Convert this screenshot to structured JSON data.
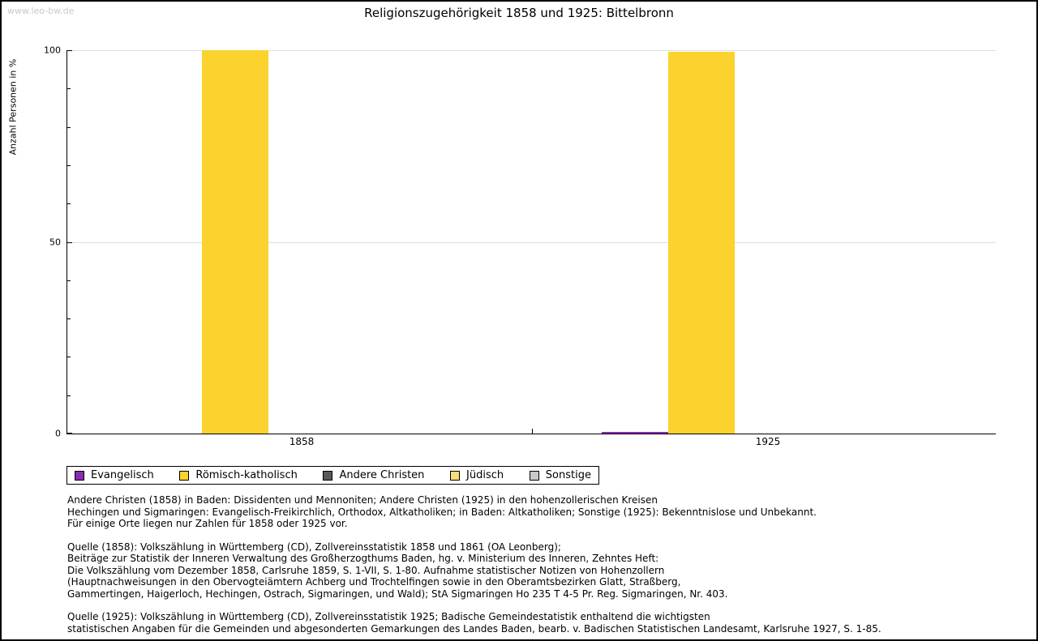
{
  "watermark": "www.leo-bw.de",
  "chart_data": {
    "type": "bar",
    "title": "Religionszugehörigkeit 1858 und 1925: Bittelbronn",
    "xlabel": "",
    "ylabel": "Anzahl Personen in %",
    "ylim": [
      0,
      100
    ],
    "yticks_major": [
      0,
      50,
      100
    ],
    "yticks_minor": [
      10,
      20,
      30,
      40,
      60,
      70,
      80,
      90
    ],
    "gridlines_at": [
      50,
      100
    ],
    "grid": "horizontal major gridlines only",
    "categories": [
      "1858",
      "1925"
    ],
    "series": [
      {
        "name": "Evangelisch",
        "color": "#8B2BB0",
        "values": [
          0,
          0.4
        ]
      },
      {
        "name": "Römisch-katholisch",
        "color": "#FBD22E",
        "values": [
          100,
          99.6
        ]
      },
      {
        "name": "Andere Christen",
        "color": "#595959",
        "values": [
          0,
          0
        ]
      },
      {
        "name": "Jüdisch",
        "color": "#F5DE7D",
        "values": [
          0,
          0
        ]
      },
      {
        "name": "Sonstige",
        "color": "#C9C9C9",
        "values": [
          0,
          0
        ]
      }
    ],
    "legend_position": "bottom-left, boxed, horizontal"
  },
  "footnotes": [
    [
      "Andere Christen (1858) in Baden: Dissidenten und Mennoniten; Andere Christen (1925) in den hohenzollerischen Kreisen",
      "Hechingen und Sigmaringen: Evangelisch-Freikirchlich, Orthodox, Altkatholiken; in Baden: Altkatholiken; Sonstige (1925): Bekenntnislose und Unbekannt.",
      "Für einige Orte liegen nur Zahlen für 1858 oder 1925 vor."
    ],
    [
      "Quelle (1858): Volkszählung in Württemberg (CD), Zollvereinsstatistik 1858 und 1861 (OA Leonberg);",
      "Beiträge zur Statistik der Inneren Verwaltung des Großherzogthums Baden, hg. v. Ministerium des Inneren, Zehntes Heft:",
      "Die Volkszählung vom Dezember 1858, Carlsruhe 1859, S. 1-VII, S. 1-80. Aufnahme statistischer Notizen von Hohenzollern",
      "(Hauptnachweisungen in den Obervogteiämtern Achberg und Trochtelfingen sowie in den Oberamtsbezirken Glatt, Straßberg,",
      "Gammertingen, Haigerloch, Hechingen, Ostrach, Sigmaringen, und Wald); StA Sigmaringen Ho 235 T 4-5 Pr. Reg. Sigmaringen, Nr. 403."
    ],
    [
      "Quelle (1925): Volkszählung in Württemberg (CD), Zollvereinsstatistik 1925; Badische Gemeindestatistik enthaltend die wichtigsten",
      "statistischen Angaben für die Gemeinden und abgesonderten Gemarkungen des Landes Baden, bearb. v. Badischen Statistischen Landesamt, Karlsruhe 1927, S. 1-85."
    ]
  ]
}
